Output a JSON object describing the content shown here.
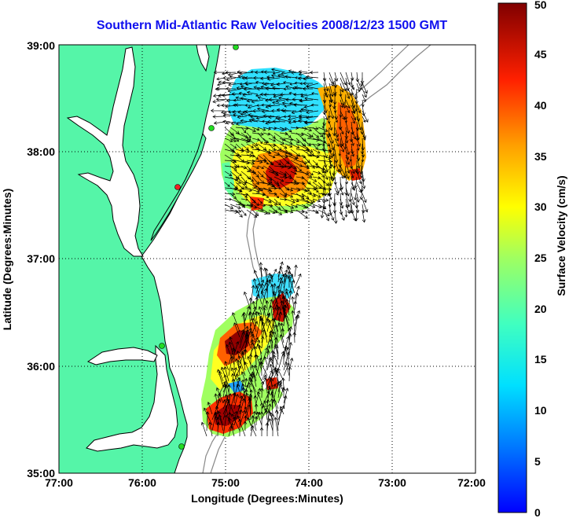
{
  "title": "Southern Mid-Atlantic Raw Velocities 2008/12/23 1500 GMT",
  "x_axis": {
    "label": "Longitude (Degrees:Minutes)",
    "ticks": [
      "77:00",
      "76:00",
      "75:00",
      "74:00",
      "73:00",
      "72:00"
    ],
    "range": [
      -77,
      -72
    ]
  },
  "y_axis": {
    "label": "Latitude (Degrees:Minutes)",
    "ticks": [
      "39:00",
      "38:00",
      "37:00",
      "36:00",
      "35:00"
    ],
    "range": [
      35,
      39
    ]
  },
  "colorbar": {
    "label": "Surface Velocity (cm/s)",
    "ticks": [
      "0",
      "5",
      "10",
      "15",
      "20",
      "25",
      "30",
      "35",
      "40",
      "45",
      "50"
    ],
    "range": [
      0,
      50
    ],
    "colormap": "jet"
  },
  "grid": "dotted",
  "colors": {
    "land": "#55f5a8",
    "water": "#ffffff",
    "title": "#1010ee",
    "coastline": "#000000",
    "bathymetry": "#888888",
    "station_active": "#22dd22",
    "station_inactive": "#ee2222"
  }
}
